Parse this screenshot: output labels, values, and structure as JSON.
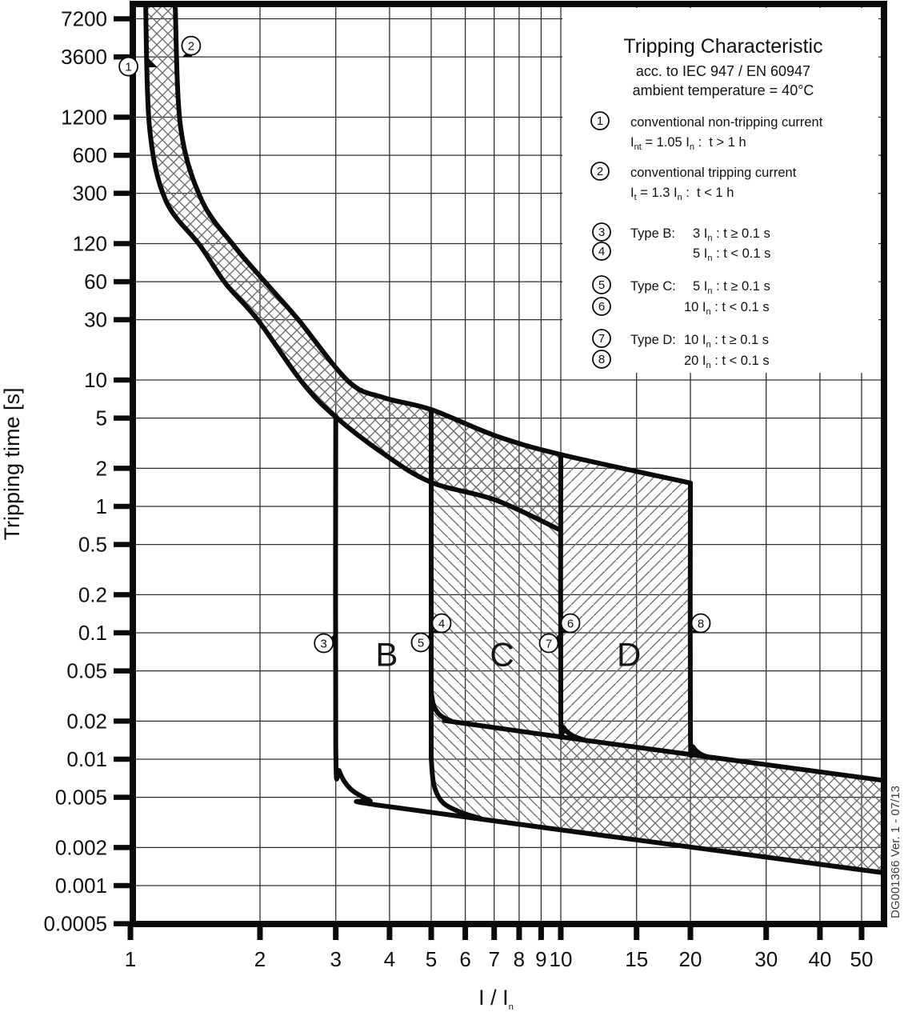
{
  "side_note": "DG001366 Ver. 1 - 07/13",
  "legend": {
    "title": "Tripping Characteristic",
    "subtitle": "acc. to IEC 947 / EN 60947",
    "ambient": "ambient temperature = 40°C",
    "item1": {
      "num": "1",
      "desc": "conventional non-tripping current",
      "f_base": "I",
      "f_sub1": "nt",
      "f_mid": " = 1.05 I",
      "f_sub2": "n",
      "f_tail": " :  t > 1 h"
    },
    "item2": {
      "num": "2",
      "desc": "conventional tripping current",
      "f_base": "I",
      "f_sub1": "t",
      "f_mid": " = 1.3 I",
      "f_sub2": "n",
      "f_tail": " :  t < 1 h"
    },
    "types": [
      {
        "num_a": "3",
        "num_b": "4",
        "label": "Type B:",
        "row_a": {
          "mult": "3 I",
          "sub": "n",
          "cond": " : t ≥ 0.1 s"
        },
        "row_b": {
          "mult": "5 I",
          "sub": "n",
          "cond": " : t < 0.1 s"
        }
      },
      {
        "num_a": "5",
        "num_b": "6",
        "label": "Type C:",
        "row_a": {
          "mult": "5 I",
          "sub": "n",
          "cond": " : t ≥ 0.1 s"
        },
        "row_b": {
          "mult": "10 I",
          "sub": "n",
          "cond": " : t < 0.1 s"
        }
      },
      {
        "num_a": "7",
        "num_b": "8",
        "label": "Type D:",
        "row_a": {
          "mult": "10 I",
          "sub": "n",
          "cond": " : t ≥ 0.1 s"
        },
        "row_b": {
          "mult": "20 I",
          "sub": "n",
          "cond": " : t < 0.1 s"
        }
      }
    ]
  },
  "y_axis_title": "Tripping time [s]",
  "x_axis_title_base": "I / I",
  "x_axis_title_sub": "n",
  "chart_data": {
    "type": "line",
    "title": "Tripping Characteristic",
    "xlabel": "I / In",
    "ylabel": "Tripping time [s]",
    "x_scale": "log",
    "y_scale": "log",
    "x_range": [
      1,
      55.6
    ],
    "y_range": [
      0.00041,
      9050
    ],
    "grid": true,
    "legend_position": "top-right",
    "x_ticks": [
      {
        "v": 1,
        "label": "1"
      },
      {
        "v": 2,
        "label": "2"
      },
      {
        "v": 3,
        "label": "3"
      },
      {
        "v": 4,
        "label": "4"
      },
      {
        "v": 5,
        "label": "5"
      },
      {
        "v": 6,
        "label": "6"
      },
      {
        "v": 7,
        "label": "7"
      },
      {
        "v": 8,
        "label": "8"
      },
      {
        "v": 9,
        "label": "9"
      },
      {
        "v": 10,
        "label": "10"
      },
      {
        "v": 15,
        "label": "15"
      },
      {
        "v": 20,
        "label": "20"
      },
      {
        "v": 30,
        "label": "30"
      },
      {
        "v": 40,
        "label": "40"
      },
      {
        "v": 50,
        "label": "50"
      }
    ],
    "y_ticks": [
      {
        "v": 7200,
        "label": "7200"
      },
      {
        "v": 3600,
        "label": "3600"
      },
      {
        "v": 1200,
        "label": "1200"
      },
      {
        "v": 600,
        "label": "600"
      },
      {
        "v": 300,
        "label": "300"
      },
      {
        "v": 120,
        "label": "120"
      },
      {
        "v": 60,
        "label": "60"
      },
      {
        "v": 30,
        "label": "30"
      },
      {
        "v": 10,
        "label": "10"
      },
      {
        "v": 5,
        "label": "5"
      },
      {
        "v": 2,
        "label": "2"
      },
      {
        "v": 1,
        "label": "1"
      },
      {
        "v": 0.5,
        "label": "0.5"
      },
      {
        "v": 0.2,
        "label": "0.2"
      },
      {
        "v": 0.1,
        "label": "0.1"
      },
      {
        "v": 0.05,
        "label": "0.05"
      },
      {
        "v": 0.02,
        "label": "0.02"
      },
      {
        "v": 0.01,
        "label": "0.01"
      },
      {
        "v": 0.005,
        "label": "0.005"
      },
      {
        "v": 0.002,
        "label": "0.002"
      },
      {
        "v": 0.001,
        "label": "0.001"
      },
      {
        "v": 0.0005,
        "label": "0.0005"
      }
    ],
    "curves": [
      {
        "name": "thermal-non-tripping-limit-1.05In",
        "smooth": true,
        "points": [
          [
            1.085,
            9000
          ],
          [
            1.108,
            985
          ],
          [
            1.207,
            265
          ],
          [
            1.451,
            116
          ],
          [
            1.664,
            58
          ],
          [
            1.975,
            30
          ],
          [
            2.5,
            9.7
          ],
          [
            2.98,
            5.2
          ],
          [
            3.88,
            2.6
          ],
          [
            5.0,
            1.55
          ],
          [
            7.07,
            1.12
          ],
          [
            9.97,
            0.65
          ]
        ]
      },
      {
        "name": "thermal-tripping-limit-1.3In",
        "smooth": true,
        "points": [
          [
            1.271,
            9000
          ],
          [
            1.309,
            985
          ],
          [
            1.464,
            265
          ],
          [
            1.745,
            114
          ],
          [
            2.07,
            58
          ],
          [
            2.456,
            30
          ],
          [
            3.215,
            9.7
          ],
          [
            3.88,
            7.25
          ],
          [
            5.0,
            5.83
          ],
          [
            7.07,
            3.61
          ],
          [
            9.97,
            2.58
          ],
          [
            20.0,
            1.53
          ]
        ]
      },
      {
        "name": "magnetic-B-3In-and-band-min",
        "smooth": true,
        "points": [
          [
            3,
            5.19
          ],
          [
            3,
            0.0126
          ],
          [
            3.06,
            0.008
          ],
          [
            3.25,
            0.0058
          ],
          [
            3.6,
            0.0047
          ],
          [
            3.85,
            0.00428
          ],
          [
            20,
            0.00202
          ],
          [
            55.6,
            0.00127
          ]
        ]
      },
      {
        "name": "magnetic-C-5In-vertical",
        "smooth": false,
        "points": [
          [
            5,
            5.83
          ],
          [
            5,
            0.0102
          ]
        ]
      },
      {
        "name": "band-max-from-5In",
        "smooth": true,
        "points": [
          [
            5,
            0.0337
          ],
          [
            5.07,
            0.0264
          ],
          [
            5.25,
            0.0222
          ],
          [
            5.55,
            0.0201
          ],
          [
            5.67,
            0.0197
          ],
          [
            11.34,
            0.01415
          ],
          [
            20,
            0.0109
          ],
          [
            55.6,
            0.00683
          ]
        ]
      },
      {
        "name": "magnetic-C-5In-lower-elbow",
        "smooth": true,
        "points": [
          [
            5,
            0.0102
          ],
          [
            5.07,
            0.0063
          ],
          [
            5.3,
            0.0046
          ],
          [
            5.8,
            0.00385
          ],
          [
            6.5,
            0.0034
          ]
        ]
      },
      {
        "name": "magnetic-D-10In-vertical",
        "smooth": true,
        "points": [
          [
            10,
            2.58
          ],
          [
            10,
            0.0227
          ],
          [
            10.15,
            0.0178
          ],
          [
            10.6,
            0.0155
          ],
          [
            11.34,
            0.01415
          ]
        ]
      },
      {
        "name": "magnetic-D-20In-vertical",
        "smooth": true,
        "points": [
          [
            20,
            1.53
          ],
          [
            20,
            0.0161
          ],
          [
            20.3,
            0.0125
          ],
          [
            21.2,
            0.0109
          ],
          [
            22.5,
            0.0102
          ]
        ]
      }
    ],
    "regions": [
      {
        "name": "thermal-tolerance-band",
        "pattern": "cross",
        "points": [
          [
            1.271,
            9000
          ],
          [
            1.309,
            985
          ],
          [
            1.464,
            265
          ],
          [
            1.745,
            114
          ],
          [
            2.07,
            58
          ],
          [
            2.456,
            30
          ],
          [
            3.215,
            9.7
          ],
          [
            3.88,
            7.25
          ],
          [
            5.0,
            5.83
          ],
          [
            7.07,
            3.61
          ],
          [
            9.97,
            2.58
          ],
          [
            9.97,
            0.65
          ],
          [
            7.07,
            1.12
          ],
          [
            5.0,
            1.55
          ],
          [
            3.88,
            2.6
          ],
          [
            2.98,
            5.2
          ],
          [
            2.5,
            9.7
          ],
          [
            1.975,
            30
          ],
          [
            1.664,
            58
          ],
          [
            1.451,
            116
          ],
          [
            1.207,
            265
          ],
          [
            1.108,
            985
          ],
          [
            1.085,
            9000
          ]
        ]
      },
      {
        "name": "type-C-region",
        "pattern": "diag-down",
        "points": [
          [
            5,
            5.83
          ],
          [
            6,
            4.6
          ],
          [
            7.07,
            3.61
          ],
          [
            8.4,
            3.0
          ],
          [
            9.97,
            2.58
          ],
          [
            10,
            0.00281
          ],
          [
            6.5,
            0.0034
          ],
          [
            5.8,
            0.00385
          ],
          [
            5.3,
            0.0046
          ],
          [
            5.07,
            0.0063
          ],
          [
            5,
            0.0102
          ]
        ]
      },
      {
        "name": "type-D-region",
        "pattern": "diag-up",
        "points": [
          [
            10,
            2.58
          ],
          [
            20,
            1.53
          ],
          [
            20,
            0.0161
          ],
          [
            20.3,
            0.0125
          ],
          [
            21.2,
            0.0109
          ],
          [
            22.5,
            0.0102
          ],
          [
            11.34,
            0.01415
          ],
          [
            10.6,
            0.0155
          ],
          [
            10.15,
            0.0178
          ],
          [
            10,
            0.0227
          ]
        ]
      },
      {
        "name": "instantaneous-band",
        "pattern": "cross",
        "points": [
          [
            10,
            0.0151
          ],
          [
            11.34,
            0.01415
          ],
          [
            20,
            0.0109
          ],
          [
            55.6,
            0.00683
          ],
          [
            55.6,
            0.00127
          ],
          [
            20,
            0.00202
          ],
          [
            10,
            0.00281
          ]
        ]
      }
    ],
    "region_labels": [
      {
        "text": "B",
        "i": 3.94,
        "t": 0.068
      },
      {
        "text": "C",
        "i": 7.3,
        "t": 0.068
      },
      {
        "text": "D",
        "i": 14.4,
        "t": 0.068
      }
    ],
    "markers": [
      {
        "num": "1",
        "i": 1.092,
        "t": 3600
      },
      {
        "num": "2",
        "i": 1.32,
        "t": 3600
      },
      {
        "num": "3",
        "i": 3,
        "t": 0.1
      },
      {
        "num": "4",
        "i": 5,
        "t": 0.1
      },
      {
        "num": "5",
        "i": 5,
        "t": 0.1
      },
      {
        "num": "6",
        "i": 10,
        "t": 0.1
      },
      {
        "num": "7",
        "i": 10,
        "t": 0.1
      },
      {
        "num": "8",
        "i": 20,
        "t": 0.1
      }
    ]
  }
}
